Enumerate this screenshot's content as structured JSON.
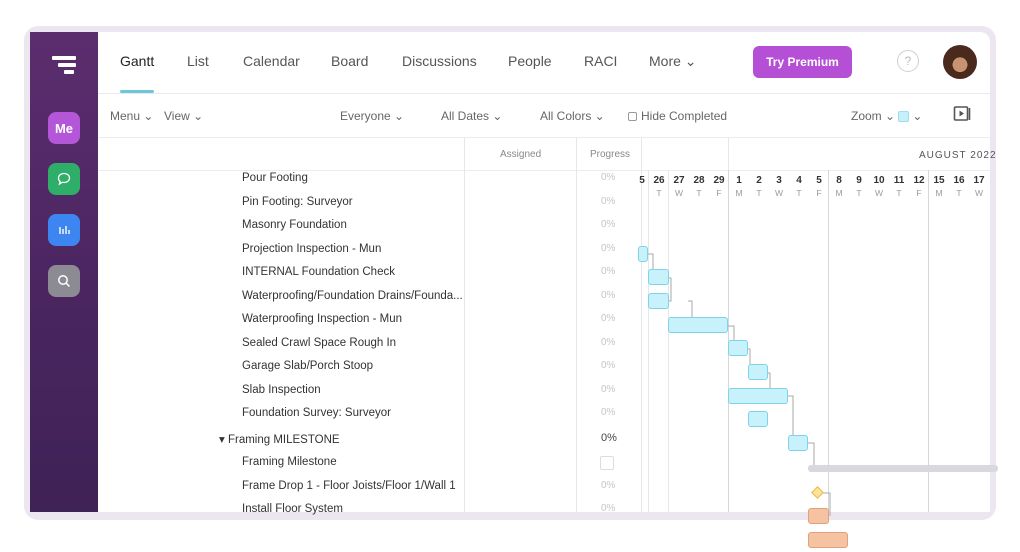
{
  "tabs": [
    "Gantt",
    "List",
    "Calendar",
    "Board",
    "Discussions",
    "People",
    "RACI",
    "More ⌄"
  ],
  "premium_label": "Try Premium",
  "help_label": "?",
  "sidebar": {
    "me_label": "Me"
  },
  "toolbar": {
    "menu": "Menu ⌄",
    "view": "View ⌄",
    "everyone": "Everyone ⌄",
    "all_dates": "All Dates ⌄",
    "all_colors": "All Colors ⌄",
    "hide_completed": "Hide Completed",
    "zoom": "Zoom ⌄",
    "zoom_caret": "⌄"
  },
  "columns": {
    "assigned": "Assigned",
    "progress": "Progress"
  },
  "timeline": {
    "month": "AUGUST 2022",
    "days": [
      "5",
      "26",
      "27",
      "28",
      "29",
      "1",
      "2",
      "3",
      "4",
      "5",
      "8",
      "9",
      "10",
      "11",
      "12",
      "15",
      "16",
      "17"
    ],
    "weekdays": [
      "",
      "T",
      "W",
      "T",
      "F",
      "M",
      "T",
      "W",
      "T",
      "F",
      "M",
      "T",
      "W",
      "T",
      "F",
      "M",
      "T",
      "W"
    ]
  },
  "tasks": [
    {
      "name": "Pour Footing",
      "progress": "0%"
    },
    {
      "name": "Pin Footing: Surveyor",
      "progress": "0%"
    },
    {
      "name": "Masonry Foundation",
      "progress": "0%"
    },
    {
      "name": "Projection Inspection - Mun",
      "progress": "0%"
    },
    {
      "name": "INTERNAL Foundation Check",
      "progress": "0%"
    },
    {
      "name": "Waterproofing/Foundation Drains/Founda...",
      "progress": "0%"
    },
    {
      "name": "Waterproofing Inspection - Mun",
      "progress": "0%"
    },
    {
      "name": "Sealed Crawl Space Rough In",
      "progress": "0%"
    },
    {
      "name": "Garage Slab/Porch Stoop",
      "progress": "0%"
    },
    {
      "name": "Slab Inspection",
      "progress": "0%"
    },
    {
      "name": "Foundation Survey: Surveyor",
      "progress": "0%"
    },
    {
      "name": "▾ Framing MILESTONE",
      "progress": "0%",
      "group": true
    },
    {
      "name": "Framing Milestone",
      "progress": "",
      "milestone": true
    },
    {
      "name": "Frame Drop 1 - Floor Joists/Floor 1/Wall 1",
      "progress": "0%"
    },
    {
      "name": "Install Floor System",
      "progress": "0%"
    }
  ],
  "colors": {
    "accent": "#b550d6",
    "bar_blue": "#c7f1fb",
    "bar_orange": "#f5c3a2",
    "sidebar": "#4a2560"
  }
}
